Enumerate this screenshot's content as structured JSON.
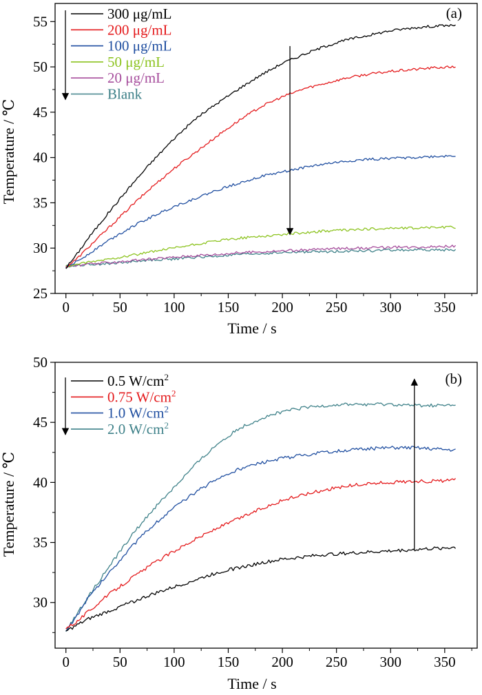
{
  "chart_data": [
    {
      "type": "line",
      "panel_label": "(a)",
      "xlabel": "Time / s",
      "ylabel": "Temperature / ℃",
      "xlim": [
        -10,
        380
      ],
      "ylim": [
        25,
        57
      ],
      "xticks": [
        0,
        50,
        100,
        150,
        200,
        250,
        300,
        350
      ],
      "yticks": [
        25,
        30,
        35,
        40,
        45,
        50,
        55
      ],
      "grid": false,
      "legend_position": "top-left",
      "legend_arrow": "down",
      "annotation_arrow": {
        "x": 207,
        "from": 52.3,
        "to": 31.5,
        "direction": "down"
      },
      "series": [
        {
          "name": "300 μg/mL",
          "color": "#000000",
          "x": [
            0,
            10,
            20,
            40,
            60,
            80,
            100,
            120,
            140,
            160,
            180,
            200,
            220,
            240,
            260,
            280,
            300,
            320,
            340,
            360
          ],
          "y": [
            27.8,
            29.3,
            31.0,
            34.0,
            36.9,
            39.6,
            42.1,
            44.3,
            46.0,
            47.6,
            49.1,
            50.4,
            51.4,
            52.3,
            53.0,
            53.5,
            54.0,
            54.3,
            54.5,
            54.6
          ]
        },
        {
          "name": "200 μg/mL",
          "color": "#e41a1c",
          "x": [
            0,
            10,
            20,
            40,
            60,
            80,
            100,
            120,
            140,
            160,
            180,
            200,
            220,
            240,
            260,
            280,
            300,
            320,
            340,
            360
          ],
          "y": [
            27.9,
            28.8,
            30.0,
            32.3,
            34.6,
            36.8,
            38.8,
            40.6,
            42.4,
            44.1,
            45.6,
            46.7,
            47.6,
            48.2,
            48.8,
            49.2,
            49.5,
            49.7,
            49.9,
            50.0
          ]
        },
        {
          "name": "100 μg/mL",
          "color": "#1f4ea0",
          "x": [
            0,
            10,
            20,
            40,
            60,
            80,
            100,
            120,
            140,
            160,
            180,
            200,
            220,
            240,
            260,
            280,
            300,
            320,
            340,
            360
          ],
          "y": [
            27.9,
            28.5,
            29.3,
            30.9,
            32.3,
            33.5,
            34.6,
            35.5,
            36.4,
            37.2,
            37.9,
            38.4,
            38.9,
            39.3,
            39.6,
            39.8,
            39.9,
            40.0,
            40.1,
            40.2
          ]
        },
        {
          "name": "50 μg/mL",
          "color": "#8cc31f",
          "x": [
            0,
            20,
            40,
            60,
            80,
            100,
            120,
            140,
            160,
            180,
            200,
            220,
            240,
            260,
            280,
            300,
            320,
            340,
            360
          ],
          "y": [
            28.0,
            28.4,
            28.8,
            29.2,
            29.6,
            30.0,
            30.4,
            30.8,
            31.1,
            31.3,
            31.5,
            31.7,
            31.9,
            32.0,
            32.1,
            32.2,
            32.2,
            32.3,
            32.3
          ]
        },
        {
          "name": "20 μg/mL",
          "color": "#a64d9c",
          "x": [
            0,
            20,
            40,
            60,
            80,
            100,
            120,
            140,
            160,
            180,
            200,
            220,
            240,
            260,
            280,
            300,
            320,
            340,
            360
          ],
          "y": [
            28.0,
            28.2,
            28.4,
            28.6,
            28.8,
            29.0,
            29.2,
            29.3,
            29.5,
            29.6,
            29.7,
            29.8,
            29.9,
            30.0,
            30.0,
            30.1,
            30.1,
            30.2,
            30.2
          ]
        },
        {
          "name": "Blank",
          "color": "#3d8088",
          "x": [
            0,
            20,
            40,
            60,
            80,
            100,
            120,
            140,
            160,
            180,
            200,
            220,
            240,
            260,
            280,
            300,
            320,
            340,
            360
          ],
          "y": [
            28.0,
            28.2,
            28.3,
            28.5,
            28.7,
            28.8,
            29.0,
            29.1,
            29.3,
            29.4,
            29.5,
            29.6,
            29.6,
            29.7,
            29.7,
            29.8,
            29.8,
            29.8,
            29.8
          ]
        }
      ]
    },
    {
      "type": "line",
      "panel_label": "(b)",
      "xlabel": "Time / s",
      "ylabel": "Temperature / ℃",
      "xlim": [
        -10,
        380
      ],
      "ylim": [
        26.2,
        50
      ],
      "xticks": [
        0,
        50,
        100,
        150,
        200,
        250,
        300,
        350
      ],
      "yticks": [
        30,
        35,
        40,
        45,
        50
      ],
      "grid": false,
      "legend_position": "top-left",
      "legend_arrow": "down",
      "annotation_arrow": {
        "x": 322,
        "from": 34.4,
        "to": 48.6,
        "direction": "up"
      },
      "series": [
        {
          "name": "0.5 W/cm",
          "superscript": "2",
          "color": "#000000",
          "x": [
            0,
            10,
            20,
            40,
            60,
            80,
            100,
            120,
            140,
            160,
            180,
            200,
            220,
            240,
            260,
            280,
            300,
            320,
            340,
            360
          ],
          "y": [
            27.6,
            28.1,
            28.6,
            29.3,
            30.0,
            30.7,
            31.3,
            31.9,
            32.5,
            32.9,
            33.3,
            33.6,
            33.8,
            34.0,
            34.1,
            34.2,
            34.3,
            34.4,
            34.5,
            34.6
          ]
        },
        {
          "name": "0.75 W/cm",
          "superscript": "2",
          "color": "#e41a1c",
          "x": [
            0,
            10,
            20,
            40,
            60,
            80,
            100,
            120,
            140,
            160,
            180,
            200,
            220,
            240,
            260,
            280,
            300,
            320,
            340,
            360
          ],
          "y": [
            27.9,
            28.4,
            29.2,
            30.7,
            32.0,
            33.2,
            34.3,
            35.3,
            36.2,
            37.0,
            37.8,
            38.5,
            39.0,
            39.4,
            39.7,
            39.9,
            40.0,
            40.1,
            40.1,
            40.2
          ]
        },
        {
          "name": "1.0 W/cm",
          "superscript": "2",
          "color": "#1f4ea0",
          "x": [
            0,
            10,
            20,
            40,
            60,
            80,
            100,
            120,
            140,
            160,
            180,
            200,
            220,
            240,
            260,
            280,
            300,
            320,
            340,
            360
          ],
          "y": [
            27.6,
            28.9,
            30.3,
            32.5,
            34.6,
            36.4,
            37.9,
            39.2,
            40.3,
            41.1,
            41.6,
            42.0,
            42.3,
            42.5,
            42.7,
            42.8,
            42.9,
            42.9,
            42.8,
            42.7
          ]
        },
        {
          "name": "2.0 W/cm",
          "superscript": "2",
          "color": "#3d8088",
          "x": [
            0,
            10,
            20,
            40,
            60,
            80,
            100,
            120,
            140,
            160,
            180,
            200,
            220,
            240,
            260,
            280,
            300,
            320,
            340,
            360
          ],
          "y": [
            27.7,
            29.0,
            30.4,
            33.0,
            35.5,
            37.7,
            39.6,
            41.5,
            43.2,
            44.5,
            45.3,
            45.9,
            46.2,
            46.4,
            46.5,
            46.5,
            46.5,
            46.4,
            46.4,
            46.4
          ]
        }
      ]
    }
  ]
}
